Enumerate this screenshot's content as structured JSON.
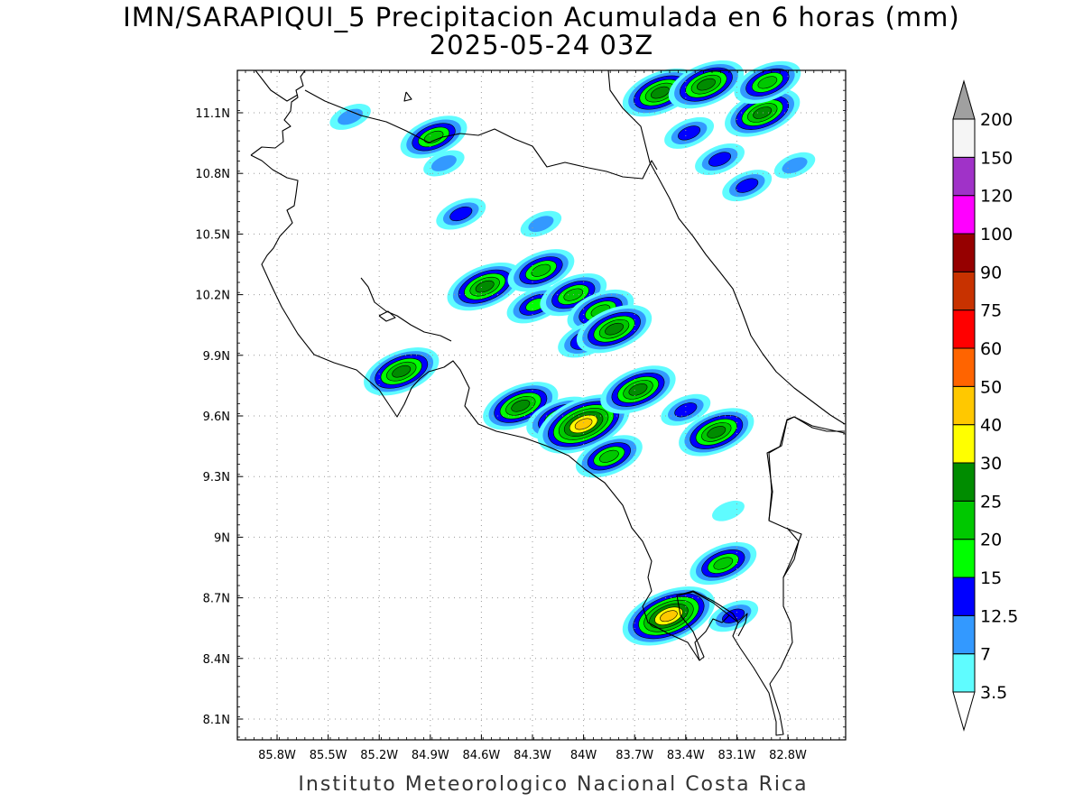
{
  "title": {
    "line1": "IMN/SARAPIQUI_5 Precipitacion Acumulada en 6 horas (mm)",
    "line2": "2025-05-24 03Z"
  },
  "footer": "Instituto Meteorologico Nacional Costa Rica",
  "chart_data": {
    "type": "map",
    "variable": "6-hour accumulated precipitation",
    "units": "mm",
    "lon_range": [
      -86.0,
      -82.6
    ],
    "lat_range": [
      8.0,
      11.3
    ],
    "grid": true,
    "lon_ticks": [
      "85.8W",
      "85.5W",
      "85.2W",
      "84.9W",
      "84.6W",
      "84.3W",
      "84W",
      "83.7W",
      "83.4W",
      "83.1W",
      "82.8W"
    ],
    "lat_ticks": [
      "8.1N",
      "8.4N",
      "8.7N",
      "9N",
      "9.3N",
      "9.6N",
      "9.9N",
      "10.2N",
      "10.5N",
      "10.8N",
      "11.1N"
    ],
    "colorbar": {
      "placement": "right",
      "levels": [
        "3.5",
        "7",
        "12.5",
        "15",
        "20",
        "25",
        "30",
        "40",
        "50",
        "60",
        "75",
        "90",
        "100",
        "120",
        "150",
        "200"
      ],
      "colors": [
        "#5ffcff",
        "#3399ff",
        "#0000ff",
        "#00ff00",
        "#00c800",
        "#008c00",
        "#ffff00",
        "#ffc800",
        "#ff6400",
        "#ff0000",
        "#c83200",
        "#960000",
        "#ff00ff",
        "#a032c8",
        "#f5f5f5"
      ],
      "extend_low_color": "#ffffff",
      "extend_high_color": "#a0a0a0"
    },
    "precip_cells": [
      {
        "lon": -84.88,
        "lat": 10.98,
        "peak": 20
      },
      {
        "lon": -85.37,
        "lat": 11.08,
        "peak": 7
      },
      {
        "lon": -84.82,
        "lat": 10.85,
        "peak": 7
      },
      {
        "lon": -84.72,
        "lat": 10.6,
        "peak": 12.5
      },
      {
        "lon": -84.58,
        "lat": 10.24,
        "peak": 25
      },
      {
        "lon": -84.25,
        "lat": 10.32,
        "peak": 20
      },
      {
        "lon": -84.28,
        "lat": 10.15,
        "peak": 15
      },
      {
        "lon": -84.06,
        "lat": 10.2,
        "peak": 20
      },
      {
        "lon": -83.9,
        "lat": 10.12,
        "peak": 20
      },
      {
        "lon": -83.98,
        "lat": 9.98,
        "peak": 15
      },
      {
        "lon": -83.82,
        "lat": 10.03,
        "peak": 25
      },
      {
        "lon": -84.25,
        "lat": 10.55,
        "peak": 7
      },
      {
        "lon": -85.07,
        "lat": 9.82,
        "peak": 25
      },
      {
        "lon": -84.37,
        "lat": 9.65,
        "peak": 25
      },
      {
        "lon": -84.14,
        "lat": 9.59,
        "peak": 20
      },
      {
        "lon": -84.0,
        "lat": 9.56,
        "peak": 40
      },
      {
        "lon": -83.85,
        "lat": 9.4,
        "peak": 20
      },
      {
        "lon": -83.68,
        "lat": 9.73,
        "peak": 25
      },
      {
        "lon": -83.4,
        "lat": 9.63,
        "peak": 12.5
      },
      {
        "lon": -83.22,
        "lat": 9.52,
        "peak": 25
      },
      {
        "lon": -83.55,
        "lat": 11.2,
        "peak": 25
      },
      {
        "lon": -83.28,
        "lat": 11.24,
        "peak": 25
      },
      {
        "lon": -82.95,
        "lat": 11.1,
        "peak": 25
      },
      {
        "lon": -82.92,
        "lat": 11.25,
        "peak": 20
      },
      {
        "lon": -83.38,
        "lat": 11.0,
        "peak": 12.5
      },
      {
        "lon": -83.2,
        "lat": 10.87,
        "peak": 12.5
      },
      {
        "lon": -83.04,
        "lat": 10.74,
        "peak": 12.5
      },
      {
        "lon": -83.18,
        "lat": 8.87,
        "peak": 20
      },
      {
        "lon": -83.5,
        "lat": 8.61,
        "peak": 40
      },
      {
        "lon": -83.12,
        "lat": 8.61,
        "peak": 12.5
      },
      {
        "lon": -82.76,
        "lat": 10.84,
        "peak": 7
      },
      {
        "lon": -83.15,
        "lat": 9.13,
        "peak": 3.5
      }
    ]
  }
}
